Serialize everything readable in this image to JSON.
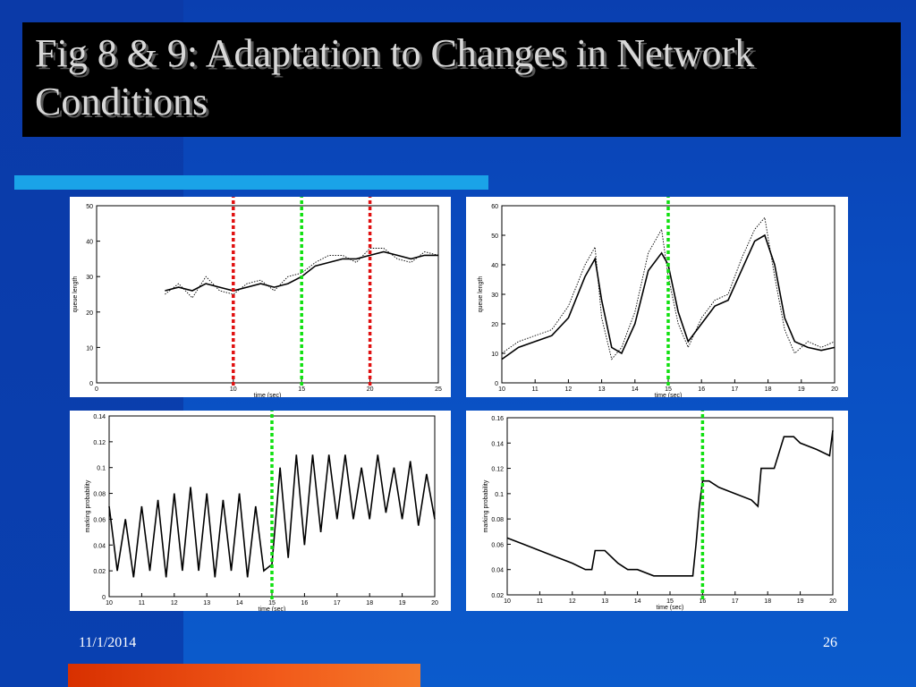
{
  "slide": {
    "title_line1": "Fig 8 & 9: Adaptation to Changes in Network",
    "title_line2": "Conditions",
    "footer_date": "11/1/2014",
    "page_number": "26"
  },
  "colors": {
    "background": "#0a4cc0",
    "title_box": "#000000",
    "title_text": "#d8d8d8",
    "accent_bar": "#1aa3e8",
    "orange_bar": "#e8501a",
    "marker_red": "#e01010",
    "marker_green": "#10e010"
  },
  "chart_data": [
    {
      "type": "line",
      "id": "queue-length-tl",
      "ylabel": "queue length",
      "xlabel": "time (sec)",
      "xlim": [
        0,
        25
      ],
      "ylim": [
        0,
        50
      ],
      "xticks": [
        "0",
        "10",
        "15",
        "20",
        "25"
      ],
      "yticks": [
        "0",
        "10",
        "20",
        "30",
        "40",
        "50"
      ],
      "markers": [
        {
          "x": 10,
          "color": "red"
        },
        {
          "x": 15,
          "color": "green"
        },
        {
          "x": 20,
          "color": "red"
        }
      ],
      "series": [
        {
          "style": "solid",
          "x": [
            5,
            6,
            7,
            8,
            9,
            10,
            11,
            12,
            13,
            14,
            15,
            16,
            17,
            18,
            19,
            20,
            21,
            22,
            23,
            24,
            25
          ],
          "values": [
            26,
            27,
            26,
            28,
            27,
            26,
            27,
            28,
            27,
            28,
            30,
            33,
            34,
            35,
            35,
            36,
            37,
            36,
            35,
            36,
            36
          ]
        },
        {
          "style": "dotted",
          "x": [
            5,
            6,
            7,
            8,
            9,
            10,
            11,
            12,
            13,
            14,
            15,
            16,
            17,
            18,
            19,
            20,
            21,
            22,
            23,
            24,
            25
          ],
          "values": [
            25,
            28,
            24,
            30,
            26,
            25,
            28,
            29,
            26,
            30,
            31,
            34,
            36,
            36,
            34,
            38,
            38,
            35,
            34,
            37,
            36
          ]
        }
      ]
    },
    {
      "type": "line",
      "id": "queue-length-tr",
      "ylabel": "queue length",
      "xlabel": "time (sec)",
      "xlim": [
        10,
        20
      ],
      "ylim": [
        0,
        60
      ],
      "xticks": [
        "10",
        "11",
        "12",
        "13",
        "14",
        "15",
        "16",
        "17",
        "18",
        "19",
        "20"
      ],
      "yticks": [
        "0",
        "10",
        "20",
        "30",
        "40",
        "50",
        "60"
      ],
      "markers": [
        {
          "x": 15,
          "color": "green"
        }
      ],
      "series": [
        {
          "style": "solid",
          "x": [
            10,
            10.5,
            11,
            11.5,
            12,
            12.5,
            12.8,
            13,
            13.3,
            13.6,
            14,
            14.4,
            14.8,
            15,
            15.3,
            15.6,
            16,
            16.4,
            16.8,
            17.2,
            17.6,
            17.9,
            18.2,
            18.5,
            18.8,
            19.2,
            19.6,
            20
          ],
          "values": [
            8,
            12,
            14,
            16,
            22,
            36,
            42,
            28,
            12,
            10,
            20,
            38,
            44,
            40,
            24,
            14,
            20,
            26,
            28,
            38,
            48,
            50,
            40,
            22,
            14,
            12,
            11,
            12
          ]
        },
        {
          "style": "dotted",
          "x": [
            10,
            10.5,
            11,
            11.5,
            12,
            12.5,
            12.8,
            13,
            13.3,
            13.6,
            14,
            14.4,
            14.8,
            15,
            15.3,
            15.6,
            16,
            16.4,
            16.8,
            17.2,
            17.6,
            17.9,
            18.2,
            18.5,
            18.8,
            19.2,
            19.6,
            20
          ],
          "values": [
            10,
            14,
            16,
            18,
            26,
            40,
            46,
            22,
            8,
            12,
            24,
            44,
            52,
            36,
            20,
            12,
            22,
            28,
            30,
            42,
            52,
            56,
            36,
            18,
            10,
            14,
            12,
            14
          ]
        }
      ]
    },
    {
      "type": "line",
      "id": "marking-probability-bl",
      "ylabel": "marking probability",
      "xlabel": "time (sec)",
      "xlim": [
        10,
        20
      ],
      "ylim": [
        0,
        0.14
      ],
      "xticks": [
        "10",
        "11",
        "12",
        "13",
        "14",
        "15",
        "16",
        "17",
        "18",
        "19",
        "20"
      ],
      "yticks": [
        "0",
        "0.02",
        "0.04",
        "0.06",
        "0.08",
        "0.1",
        "0.12",
        "0.14"
      ],
      "markers": [
        {
          "x": 15,
          "color": "green"
        }
      ],
      "series": [
        {
          "style": "solid",
          "x": [
            10,
            10.25,
            10.5,
            10.75,
            11,
            11.25,
            11.5,
            11.75,
            12,
            12.25,
            12.5,
            12.75,
            13,
            13.25,
            13.5,
            13.75,
            14,
            14.25,
            14.5,
            14.75,
            15,
            15.25,
            15.5,
            15.75,
            16,
            16.25,
            16.5,
            16.75,
            17,
            17.25,
            17.5,
            17.75,
            18,
            18.25,
            18.5,
            18.75,
            19,
            19.25,
            19.5,
            19.75,
            20
          ],
          "values": [
            0.07,
            0.02,
            0.06,
            0.015,
            0.07,
            0.02,
            0.075,
            0.015,
            0.08,
            0.02,
            0.085,
            0.02,
            0.08,
            0.015,
            0.075,
            0.02,
            0.08,
            0.015,
            0.07,
            0.02,
            0.025,
            0.1,
            0.03,
            0.11,
            0.04,
            0.11,
            0.05,
            0.11,
            0.06,
            0.11,
            0.06,
            0.1,
            0.06,
            0.11,
            0.065,
            0.1,
            0.06,
            0.105,
            0.055,
            0.095,
            0.06
          ]
        }
      ]
    },
    {
      "type": "line",
      "id": "marking-probability-br",
      "ylabel": "marking probability",
      "xlabel": "time (sec)",
      "xlim": [
        10,
        20
      ],
      "ylim": [
        0.02,
        0.16
      ],
      "xticks": [
        "10",
        "11",
        "12",
        "13",
        "14",
        "15",
        "16",
        "17",
        "18",
        "19",
        "20"
      ],
      "yticks": [
        "0.02",
        "0.04",
        "0.06",
        "0.08",
        "0.1",
        "0.12",
        "0.14",
        "0.16"
      ],
      "markers": [
        {
          "x": 16,
          "color": "green"
        }
      ],
      "series": [
        {
          "style": "solid",
          "x": [
            10,
            10.5,
            11,
            11.5,
            12,
            12.4,
            12.6,
            12.7,
            13,
            13.4,
            13.7,
            14,
            14.5,
            15,
            15.7,
            15.8,
            15.9,
            16,
            16.2,
            16.5,
            17,
            17.5,
            17.7,
            17.8,
            18.2,
            18.5,
            18.8,
            19,
            19.5,
            19.9,
            20
          ],
          "values": [
            0.065,
            0.06,
            0.055,
            0.05,
            0.045,
            0.04,
            0.04,
            0.055,
            0.055,
            0.045,
            0.04,
            0.04,
            0.035,
            0.035,
            0.035,
            0.06,
            0.09,
            0.11,
            0.11,
            0.105,
            0.1,
            0.095,
            0.09,
            0.12,
            0.12,
            0.145,
            0.145,
            0.14,
            0.135,
            0.13,
            0.15
          ]
        }
      ]
    }
  ]
}
